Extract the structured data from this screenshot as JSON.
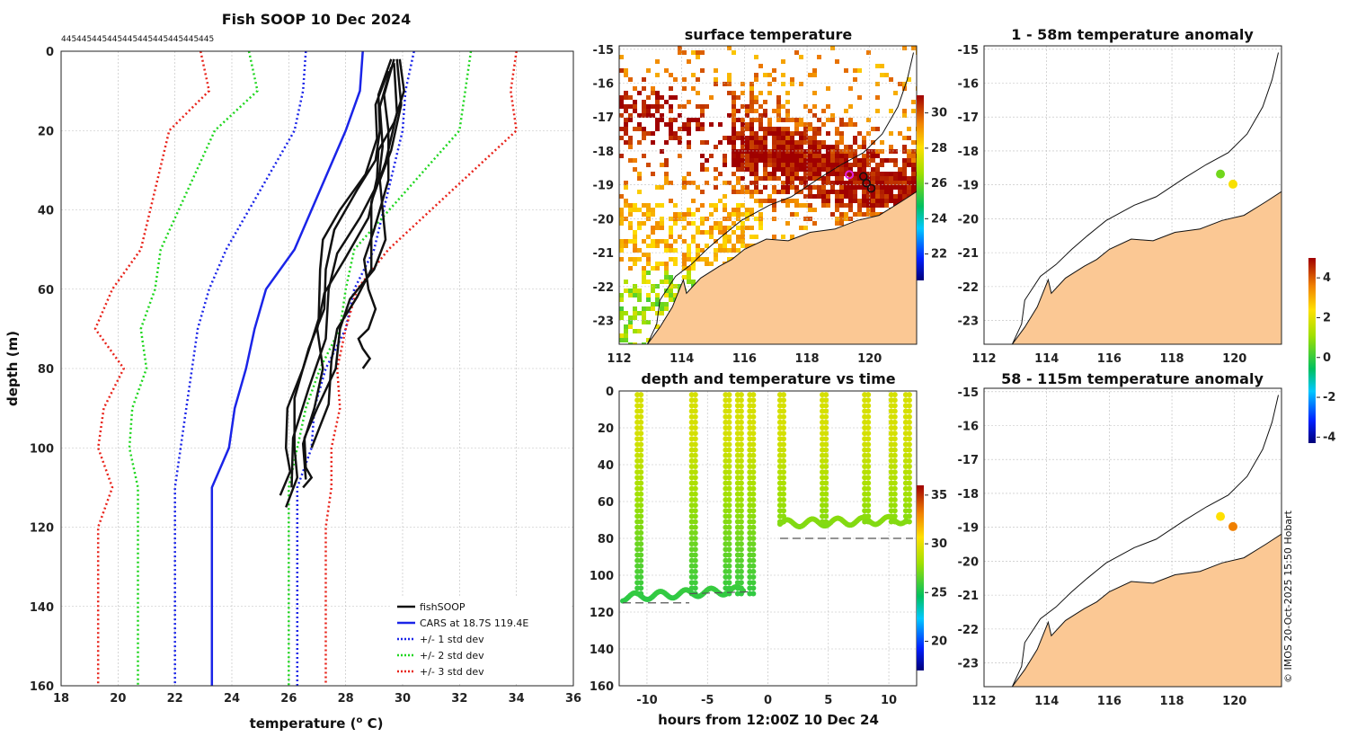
{
  "colors": {
    "land": "#fbc894",
    "profile": "#111111",
    "cars": "#1a24e8",
    "std1": "#1a24e8",
    "std2": "#1fd61f",
    "std3": "#e8231a"
  },
  "chart_data": [
    {
      "type": "line",
      "title": "Fish SOOP 10 Dec 2024",
      "top_labels": [
        "445",
        "445",
        "445",
        "445",
        "445",
        "445",
        "445",
        "445",
        "445",
        "445",
        "445",
        "445"
      ],
      "xlabel": "temperature (",
      "xlabel_sup": "o",
      "xlabel_end": " C)",
      "ylabel": "depth (m)",
      "xlim": [
        18,
        36
      ],
      "ylim": [
        0,
        160
      ],
      "xticks": [
        18,
        20,
        22,
        24,
        26,
        28,
        30,
        32,
        34,
        36
      ],
      "yticks": [
        0,
        20,
        40,
        60,
        80,
        100,
        120,
        140,
        160
      ],
      "reference_depths": [
        0,
        10,
        20,
        50,
        60,
        70,
        80,
        90,
        100,
        110,
        120,
        160
      ],
      "series": [
        {
          "name": "CARS at 18.7S 119.4E",
          "style": "solid",
          "color_key": "cars",
          "x": [
            28.6,
            28.5,
            28.0,
            26.2,
            25.2,
            24.8,
            24.5,
            24.1,
            23.9,
            23.3,
            23.3,
            23.3
          ]
        },
        {
          "name": "+/- 1 std dev",
          "style": "dotted",
          "color_key": "std1",
          "lo": [
            26.6,
            26.5,
            26.2,
            23.8,
            23.2,
            22.8,
            22.6,
            22.4,
            22.2,
            22.0,
            22.0,
            22.0
          ],
          "hi": [
            30.4,
            30.1,
            30.0,
            29.0,
            28.3,
            28.0,
            27.3,
            26.9,
            26.8,
            26.3,
            26.3,
            26.3
          ]
        },
        {
          "name": "+/- 2 std dev",
          "style": "dotted",
          "color_key": "std2",
          "lo": [
            24.6,
            24.9,
            23.4,
            21.5,
            21.3,
            20.8,
            21.0,
            20.5,
            20.4,
            20.7,
            20.7,
            20.7
          ],
          "hi": [
            32.4,
            32.2,
            32.0,
            28.3,
            28.0,
            27.8,
            27.1,
            26.6,
            26.3,
            26.0,
            26.0,
            26.0
          ]
        },
        {
          "name": "+/- 3 std dev",
          "style": "dotted",
          "color_key": "std3",
          "lo": [
            22.9,
            23.2,
            21.8,
            20.8,
            19.8,
            19.2,
            20.2,
            19.5,
            19.3,
            19.8,
            19.3,
            19.3
          ],
          "hi": [
            34.0,
            33.8,
            34.0,
            29.5,
            28.4,
            28.0,
            27.7,
            27.8,
            27.5,
            27.5,
            27.3,
            27.3
          ]
        }
      ],
      "profiles_label": "fishSOOP",
      "profiles": [
        {
          "t": [
            29.7,
            29.5,
            29.0,
            28.8,
            28.8,
            28.6,
            28.6
          ],
          "d": [
            2,
            20,
            45,
            60,
            70,
            75,
            80
          ]
        },
        {
          "t": [
            29.8,
            29.6,
            29.3,
            29.0,
            27.8,
            27.0,
            26.6,
            26.5
          ],
          "d": [
            2,
            25,
            40,
            55,
            70,
            90,
            105,
            110
          ]
        },
        {
          "t": [
            29.6,
            29.2,
            28.4,
            27.3,
            26.7,
            26.2,
            25.9
          ],
          "d": [
            2,
            20,
            35,
            55,
            75,
            100,
            115
          ]
        },
        {
          "t": [
            29.9,
            29.7,
            29.1,
            28.0,
            27.0,
            26.9,
            26.6
          ],
          "d": [
            2,
            18,
            32,
            52,
            70,
            90,
            108
          ]
        },
        {
          "t": [
            29.5,
            29.1,
            27.8,
            27.1,
            26.5,
            25.9,
            25.7
          ],
          "d": [
            5,
            22,
            40,
            55,
            80,
            100,
            112
          ]
        },
        {
          "t": [
            29.7,
            29.4,
            28.9,
            28.4,
            27.5,
            26.8
          ],
          "d": [
            3,
            28,
            48,
            62,
            78,
            100
          ]
        },
        {
          "t": [
            29.6,
            29.3,
            28.5,
            27.4,
            26.7,
            26.1
          ],
          "d": [
            4,
            24,
            42,
            60,
            85,
            110
          ]
        }
      ]
    },
    {
      "type": "heatmap",
      "title": "surface temperature",
      "xlim": [
        112,
        121.5
      ],
      "ylim": [
        -23.7,
        -14.9
      ],
      "xticks": [
        112,
        114,
        116,
        118,
        120
      ],
      "yticks": [
        -15,
        -16,
        -17,
        -18,
        -19,
        -20,
        -21,
        -22,
        -23
      ],
      "colorbar": {
        "ticks": [
          22,
          24,
          26,
          28,
          30
        ],
        "range": [
          20.5,
          31
        ]
      }
    },
    {
      "type": "scatter",
      "title": "depth and temperature vs time",
      "xlabel": "hours from 12:00Z 10 Dec 24",
      "xlim": [
        -12.3,
        12.3
      ],
      "ylim": [
        160,
        0
      ],
      "xticks": [
        -10,
        -5,
        0,
        5,
        10
      ],
      "yticks": [
        0,
        20,
        40,
        60,
        80,
        100,
        120,
        140,
        160
      ],
      "colorbar": {
        "ticks": [
          20,
          25,
          30,
          35
        ],
        "range": [
          17,
          36
        ]
      },
      "segments": [
        {
          "x0": -12,
          "x1": -2,
          "bottom": 112
        },
        {
          "x0": 1,
          "x1": 11.5,
          "bottom": 72
        }
      ],
      "dives": [
        -10.8,
        -6.3,
        -3.5,
        -2.5,
        -1.5,
        1,
        4.5,
        8,
        10.2,
        11.4
      ],
      "bathy": [
        {
          "x": [
            -12,
            -6.5
          ],
          "y": [
            115,
            115
          ]
        },
        {
          "x": [
            -6.5,
            -1.5
          ],
          "y": [
            110,
            109
          ]
        },
        {
          "x": [
            1,
            12
          ],
          "y": [
            80,
            80
          ]
        }
      ]
    },
    {
      "type": "scatter",
      "title": "1 - 58m temperature anomaly",
      "xlim": [
        112,
        121.5
      ],
      "ylim": [
        -23.7,
        -14.9
      ],
      "xticks": [
        112,
        114,
        116,
        118,
        120
      ],
      "yticks": [
        -15,
        -16,
        -17,
        -18,
        -19,
        -20,
        -21,
        -22,
        -23
      ],
      "points": [
        {
          "lon": 119.55,
          "lat": -18.68,
          "anom": 0.6
        },
        {
          "lon": 119.95,
          "lat": -18.98,
          "anom": 2.3
        }
      ]
    },
    {
      "type": "scatter",
      "title": "58 - 115m temperature anomaly",
      "xlim": [
        112,
        121.5
      ],
      "ylim": [
        -23.7,
        -14.9
      ],
      "xticks": [
        112,
        114,
        116,
        118,
        120
      ],
      "yticks": [
        -15,
        -16,
        -17,
        -18,
        -19,
        -20,
        -21,
        -22,
        -23
      ],
      "points": [
        {
          "lon": 119.55,
          "lat": -18.68,
          "anom": 2.4
        },
        {
          "lon": 119.95,
          "lat": -18.98,
          "anom": 3.6
        }
      ],
      "colorbar": {
        "ticks": [
          -4,
          -2,
          0,
          2,
          4
        ],
        "range": [
          -4.3,
          5
        ]
      }
    }
  ],
  "credit": "© IMOS 20-Oct-2025 15:50 Hobart"
}
